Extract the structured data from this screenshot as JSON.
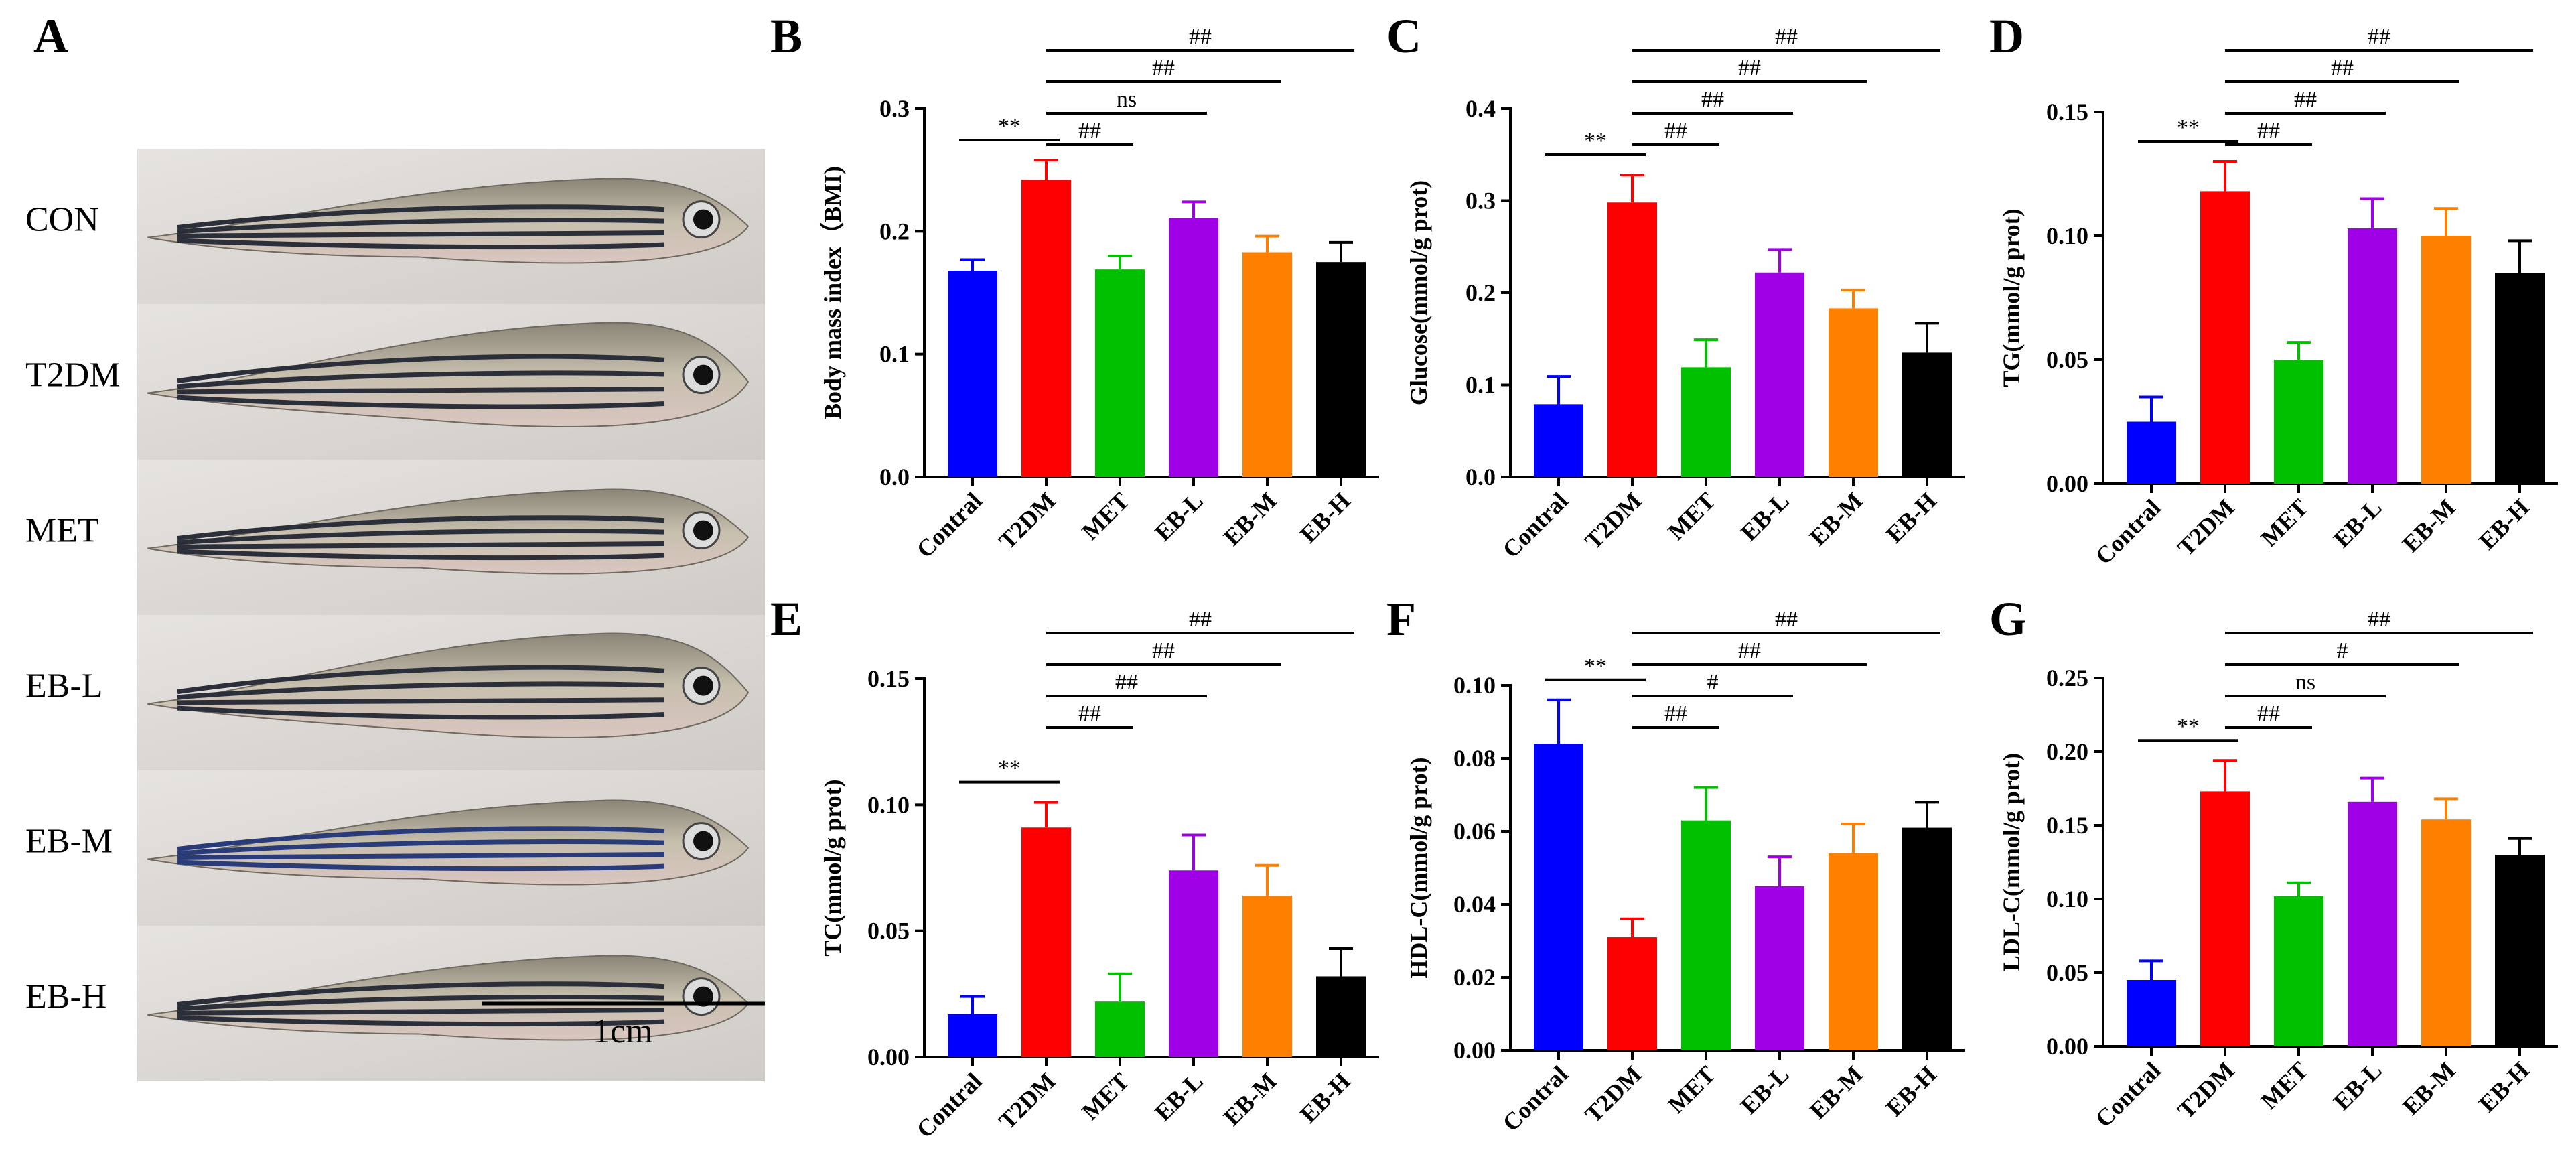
{
  "panel_a": {
    "letter": "A",
    "rows": [
      "CON",
      "T2DM",
      "MET",
      "EB-L",
      "EB-M",
      "EB-H"
    ],
    "scale_label": "1cm"
  },
  "chart_data": [
    {
      "panel": "B",
      "type": "bar",
      "categories": [
        "Contral",
        "T2DM",
        "MET",
        "EB-L",
        "EB-M",
        "EB-H"
      ],
      "values": [
        0.168,
        0.242,
        0.169,
        0.211,
        0.183,
        0.175
      ],
      "errors": [
        0.009,
        0.016,
        0.011,
        0.013,
        0.013,
        0.016
      ],
      "ylabel": "Body mass index（BMI)",
      "ylim": [
        0,
        0.3
      ],
      "yticks": [
        "0.0",
        "0.1",
        "0.2",
        "0.3"
      ],
      "comparisons": [
        {
          "from": "Contral",
          "to": "T2DM",
          "label": "**"
        },
        {
          "from": "T2DM",
          "to": "MET",
          "label": "##"
        },
        {
          "from": "T2DM",
          "to": "EB-L",
          "label": "ns"
        },
        {
          "from": "T2DM",
          "to": "EB-M",
          "label": "##"
        },
        {
          "from": "T2DM",
          "to": "EB-H",
          "label": "##"
        }
      ]
    },
    {
      "panel": "C",
      "type": "bar",
      "categories": [
        "Contral",
        "T2DM",
        "MET",
        "EB-L",
        "EB-M",
        "EB-H"
      ],
      "values": [
        0.079,
        0.298,
        0.119,
        0.222,
        0.183,
        0.135
      ],
      "errors": [
        0.03,
        0.03,
        0.03,
        0.025,
        0.02,
        0.032
      ],
      "ylabel": "Glucose(mmol/g prot)",
      "ylim": [
        0,
        0.4
      ],
      "yticks": [
        "0.0",
        "0.1",
        "0.2",
        "0.3",
        "0.4"
      ],
      "comparisons": [
        {
          "from": "Contral",
          "to": "T2DM",
          "label": "**"
        },
        {
          "from": "T2DM",
          "to": "MET",
          "label": "##"
        },
        {
          "from": "T2DM",
          "to": "EB-L",
          "label": "##"
        },
        {
          "from": "T2DM",
          "to": "EB-M",
          "label": "##"
        },
        {
          "from": "T2DM",
          "to": "EB-H",
          "label": "##"
        }
      ]
    },
    {
      "panel": "D",
      "type": "bar",
      "categories": [
        "Contral",
        "T2DM",
        "MET",
        "EB-L",
        "EB-M",
        "EB-H"
      ],
      "values": [
        0.025,
        0.118,
        0.05,
        0.103,
        0.1,
        0.085
      ],
      "errors": [
        0.01,
        0.012,
        0.007,
        0.012,
        0.011,
        0.013
      ],
      "ylabel": "TG(mmol/g prot)",
      "ylim": [
        0,
        0.15
      ],
      "yticks": [
        "0.00",
        "0.05",
        "0.10",
        "0.15"
      ],
      "comparisons": [
        {
          "from": "Contral",
          "to": "T2DM",
          "label": "**"
        },
        {
          "from": "T2DM",
          "to": "MET",
          "label": "##"
        },
        {
          "from": "T2DM",
          "to": "EB-L",
          "label": "##"
        },
        {
          "from": "T2DM",
          "to": "EB-M",
          "label": "##"
        },
        {
          "from": "T2DM",
          "to": "EB-H",
          "label": "##"
        }
      ]
    },
    {
      "panel": "E",
      "type": "bar",
      "categories": [
        "Contral",
        "T2DM",
        "MET",
        "EB-L",
        "EB-M",
        "EB-H"
      ],
      "values": [
        0.017,
        0.091,
        0.022,
        0.074,
        0.064,
        0.032
      ],
      "errors": [
        0.007,
        0.01,
        0.011,
        0.014,
        0.012,
        0.011
      ],
      "ylabel": "TC(mmol/g prot)",
      "ylim": [
        0,
        0.15
      ],
      "yticks": [
        "0.00",
        "0.05",
        "0.10",
        "0.15"
      ],
      "comparisons": [
        {
          "from": "Contral",
          "to": "T2DM",
          "label": "**"
        },
        {
          "from": "T2DM",
          "to": "MET",
          "label": "##"
        },
        {
          "from": "T2DM",
          "to": "EB-L",
          "label": "##"
        },
        {
          "from": "T2DM",
          "to": "EB-M",
          "label": "##"
        },
        {
          "from": "T2DM",
          "to": "EB-H",
          "label": "##"
        }
      ]
    },
    {
      "panel": "F",
      "type": "bar",
      "categories": [
        "Contral",
        "T2DM",
        "MET",
        "EB-L",
        "EB-M",
        "EB-H"
      ],
      "values": [
        0.084,
        0.031,
        0.063,
        0.045,
        0.054,
        0.061
      ],
      "errors": [
        0.012,
        0.005,
        0.009,
        0.008,
        0.008,
        0.007
      ],
      "ylabel": "HDL-C(mmol/g prot)",
      "ylim": [
        0,
        0.1
      ],
      "yticks": [
        "0.00",
        "0.02",
        "0.04",
        "0.06",
        "0.08",
        "0.10"
      ],
      "comparisons": [
        {
          "from": "Contral",
          "to": "T2DM",
          "label": "**"
        },
        {
          "from": "T2DM",
          "to": "MET",
          "label": "##"
        },
        {
          "from": "T2DM",
          "to": "EB-L",
          "label": "#"
        },
        {
          "from": "T2DM",
          "to": "EB-M",
          "label": "##"
        },
        {
          "from": "T2DM",
          "to": "EB-H",
          "label": "##"
        }
      ]
    },
    {
      "panel": "G",
      "type": "bar",
      "categories": [
        "Contral",
        "T2DM",
        "MET",
        "EB-L",
        "EB-M",
        "EB-H"
      ],
      "values": [
        0.045,
        0.173,
        0.102,
        0.166,
        0.154,
        0.13
      ],
      "errors": [
        0.013,
        0.021,
        0.009,
        0.016,
        0.014,
        0.011
      ],
      "ylabel": "LDL-C(mmol/g prot)",
      "ylim": [
        0,
        0.25
      ],
      "yticks": [
        "0.00",
        "0.05",
        "0.10",
        "0.15",
        "0.20",
        "0.25"
      ],
      "comparisons": [
        {
          "from": "Contral",
          "to": "T2DM",
          "label": "**"
        },
        {
          "from": "T2DM",
          "to": "MET",
          "label": "##"
        },
        {
          "from": "T2DM",
          "to": "EB-L",
          "label": "ns"
        },
        {
          "from": "T2DM",
          "to": "EB-M",
          "label": "#"
        },
        {
          "from": "T2DM",
          "to": "EB-H",
          "label": "##"
        }
      ]
    }
  ],
  "colors": {
    "bars": [
      "#0000ff",
      "#ff0000",
      "#00c000",
      "#a000e6",
      "#ff8000",
      "#000000"
    ]
  }
}
